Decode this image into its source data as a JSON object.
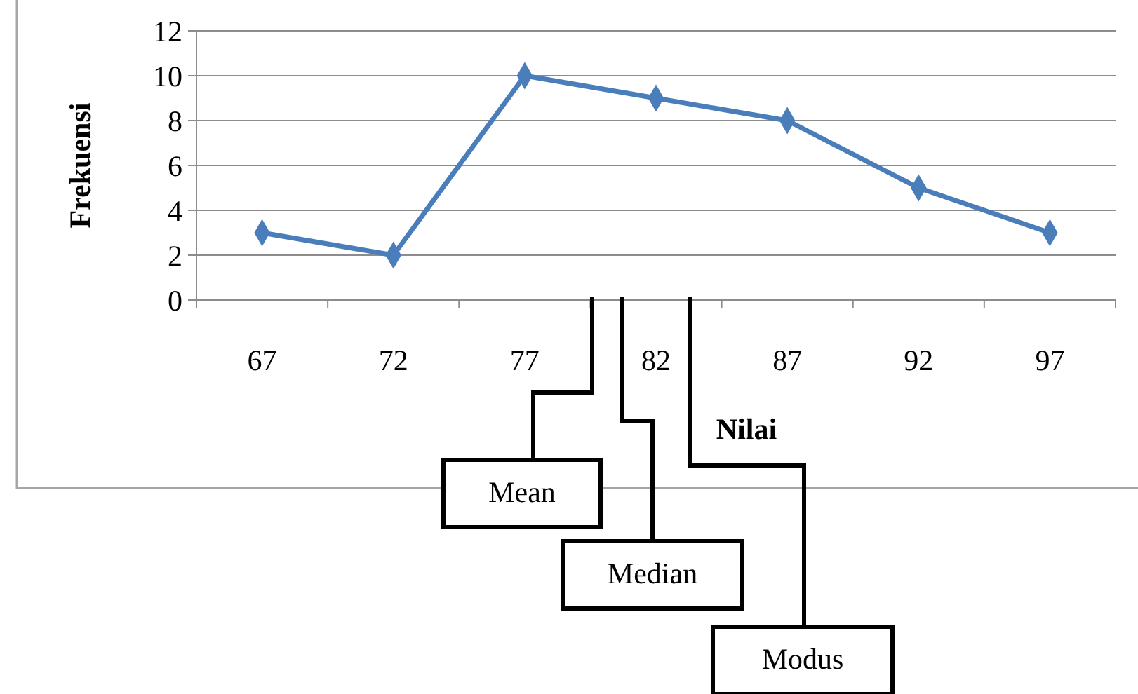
{
  "chart_data": {
    "type": "line",
    "xlabel": "Nilai",
    "ylabel": "Frekuensi",
    "categories": [
      "67",
      "72",
      "77",
      "82",
      "87",
      "92",
      "97"
    ],
    "series": [
      {
        "color": "#4a7ebb",
        "values": [
          3,
          2,
          10,
          9,
          8,
          5,
          3
        ]
      }
    ],
    "ylim": [
      0,
      12
    ],
    "yticks": [
      0,
      2,
      4,
      6,
      8,
      10,
      12
    ],
    "grid": "y",
    "marker": "diamond",
    "line_style": "solid",
    "annotations": [
      "Mean",
      "Median",
      "Modus"
    ]
  }
}
